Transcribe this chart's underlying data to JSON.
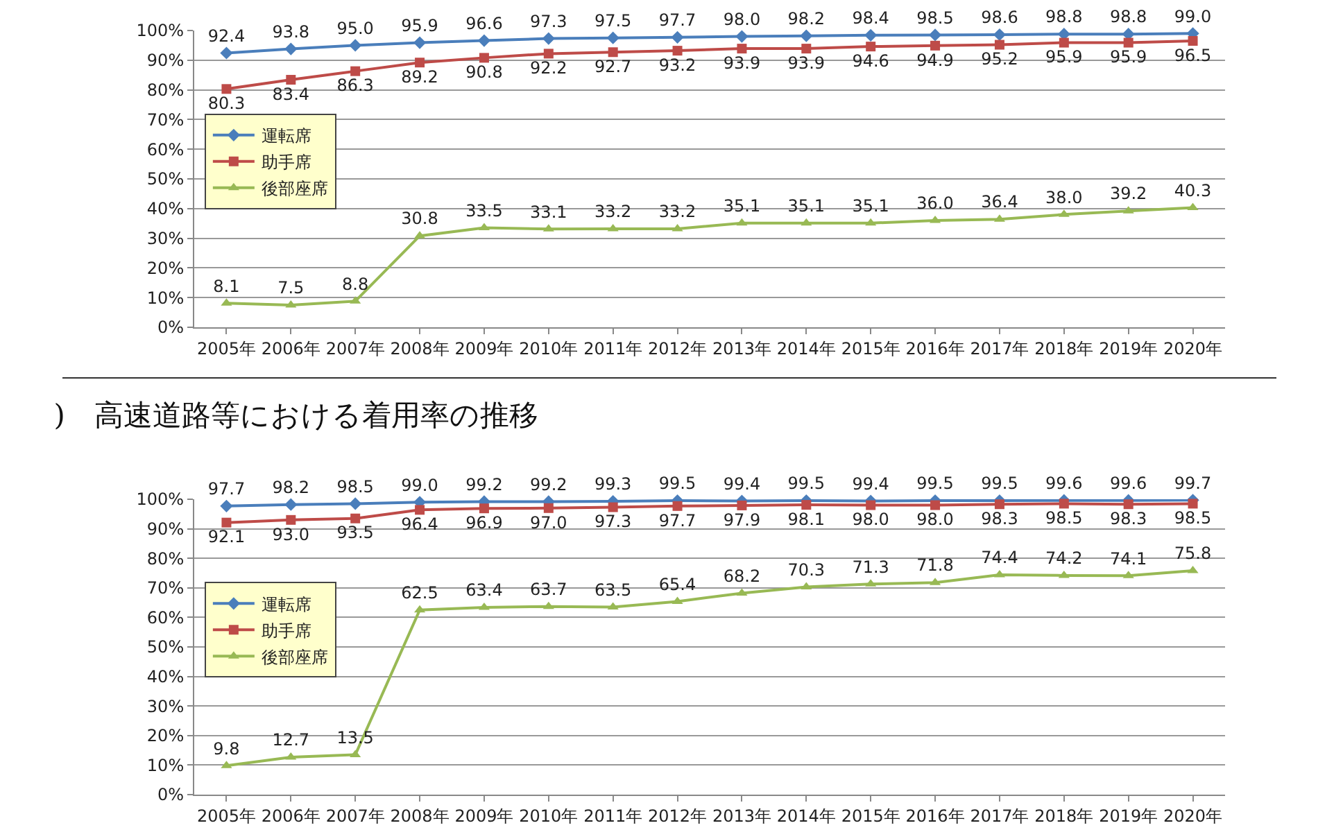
{
  "chart_data": [
    {
      "type": "line",
      "categories": [
        "2005年",
        "2006年",
        "2007年",
        "2008年",
        "2009年",
        "2010年",
        "2011年",
        "2012年",
        "2013年",
        "2014年",
        "2015年",
        "2016年",
        "2017年",
        "2018年",
        "2019年",
        "2020年"
      ],
      "series": [
        {
          "name": "運転席",
          "color": "#4a7ebb",
          "marker": "diamond",
          "values": [
            92.4,
            93.8,
            95.0,
            95.9,
            96.6,
            97.3,
            97.5,
            97.7,
            98.0,
            98.2,
            98.4,
            98.5,
            98.6,
            98.8,
            98.8,
            99.0
          ],
          "value_labels": [
            "92.4",
            "93.8",
            "95.0",
            "95.9",
            "96.6",
            "97.3",
            "97.5",
            "97.7",
            "98.0",
            "98.2",
            "98.4",
            "98.5",
            "98.6",
            "98.8",
            "98.8",
            "99.0"
          ]
        },
        {
          "name": "助手席",
          "color": "#be4b48",
          "marker": "square",
          "values": [
            80.3,
            83.4,
            86.3,
            89.2,
            90.8,
            92.2,
            92.7,
            93.2,
            93.9,
            93.9,
            94.6,
            94.9,
            95.2,
            95.9,
            95.9,
            96.5
          ],
          "value_labels": [
            "80.3",
            "83.4",
            "86.3",
            "89.2",
            "90.8",
            "92.2",
            "92.7",
            "93.2",
            "93.9",
            "93.9",
            "94.6",
            "94.9",
            "95.2",
            "95.9",
            "95.9",
            "96.5"
          ]
        },
        {
          "name": "後部座席",
          "color": "#98b954",
          "marker": "triangle",
          "values": [
            8.1,
            7.5,
            8.8,
            30.8,
            33.5,
            33.1,
            33.2,
            33.2,
            35.1,
            35.1,
            35.1,
            36.0,
            36.4,
            38.0,
            39.2,
            40.3
          ],
          "value_labels": [
            "8.1",
            "7.5",
            "8.8",
            "30.8",
            "33.5",
            "33.1",
            "33.2",
            "33.2",
            "35.1",
            "35.1",
            "35.1",
            "36.0",
            "36.4",
            "38.0",
            "39.2",
            "40.3"
          ]
        }
      ],
      "ylim": [
        0,
        100
      ],
      "yticks": [
        {
          "value": 0,
          "label": "0%"
        },
        {
          "value": 10,
          "label": "10%"
        },
        {
          "value": 20,
          "label": "20%"
        },
        {
          "value": 30,
          "label": "30%"
        },
        {
          "value": 40,
          "label": "40%"
        },
        {
          "value": 50,
          "label": "50%"
        },
        {
          "value": 60,
          "label": "60%"
        },
        {
          "value": 70,
          "label": "70%"
        },
        {
          "value": 80,
          "label": "80%"
        },
        {
          "value": 90,
          "label": "90%"
        },
        {
          "value": 100,
          "label": "100%"
        }
      ],
      "grid": "y",
      "legend": "top left",
      "line_style": "solid"
    },
    {
      "type": "line",
      "title": ")　高速道路等における着用率の推移",
      "categories": [
        "2005年",
        "2006年",
        "2007年",
        "2008年",
        "2009年",
        "2010年",
        "2011年",
        "2012年",
        "2013年",
        "2014年",
        "2015年",
        "2016年",
        "2017年",
        "2018年",
        "2019年",
        "2020年"
      ],
      "series": [
        {
          "name": "運転席",
          "color": "#4a7ebb",
          "marker": "diamond",
          "values": [
            97.7,
            98.2,
            98.5,
            99.0,
            99.2,
            99.2,
            99.3,
            99.5,
            99.4,
            99.5,
            99.4,
            99.5,
            99.5,
            99.6,
            99.6,
            99.7
          ],
          "value_labels": [
            "97.7",
            "98.2",
            "98.5",
            "99.0",
            "99.2",
            "99.2",
            "99.3",
            "99.5",
            "99.4",
            "99.5",
            "99.4",
            "99.5",
            "99.5",
            "99.6",
            "99.6",
            "99.7"
          ]
        },
        {
          "name": "助手席",
          "color": "#be4b48",
          "marker": "square",
          "values": [
            92.1,
            93.0,
            93.5,
            96.4,
            96.9,
            97.0,
            97.3,
            97.7,
            97.9,
            98.1,
            98.0,
            98.0,
            98.3,
            98.5,
            98.3,
            98.5
          ],
          "value_labels": [
            "92.1",
            "93.0",
            "93.5",
            "96.4",
            "96.9",
            "97.0",
            "97.3",
            "97.7",
            "97.9",
            "98.1",
            "98.0",
            "98.0",
            "98.3",
            "98.5",
            "98.3",
            "98.5"
          ]
        },
        {
          "name": "後部座席",
          "color": "#98b954",
          "marker": "triangle",
          "values": [
            9.8,
            12.7,
            13.5,
            62.5,
            63.4,
            63.7,
            63.5,
            65.4,
            68.2,
            70.3,
            71.3,
            71.8,
            74.4,
            74.2,
            74.1,
            75.8
          ],
          "value_labels": [
            "9.8",
            "12.7",
            "13.5",
            "62.5",
            "63.4",
            "63.7",
            "63.5",
            "65.4",
            "68.2",
            "70.3",
            "71.3",
            "71.8",
            "74.4",
            "74.2",
            "74.1",
            "75.8"
          ]
        }
      ],
      "ylim": [
        0,
        100
      ],
      "yticks": [
        {
          "value": 0,
          "label": "0%"
        },
        {
          "value": 10,
          "label": "10%"
        },
        {
          "value": 20,
          "label": "20%"
        },
        {
          "value": 30,
          "label": "30%"
        },
        {
          "value": 40,
          "label": "40%"
        },
        {
          "value": 50,
          "label": "50%"
        },
        {
          "value": 60,
          "label": "60%"
        },
        {
          "value": 70,
          "label": "70%"
        },
        {
          "value": 80,
          "label": "80%"
        },
        {
          "value": 90,
          "label": "90%"
        },
        {
          "value": 100,
          "label": "100%"
        }
      ],
      "grid": "y",
      "legend": "top left",
      "line_style": "solid"
    }
  ]
}
